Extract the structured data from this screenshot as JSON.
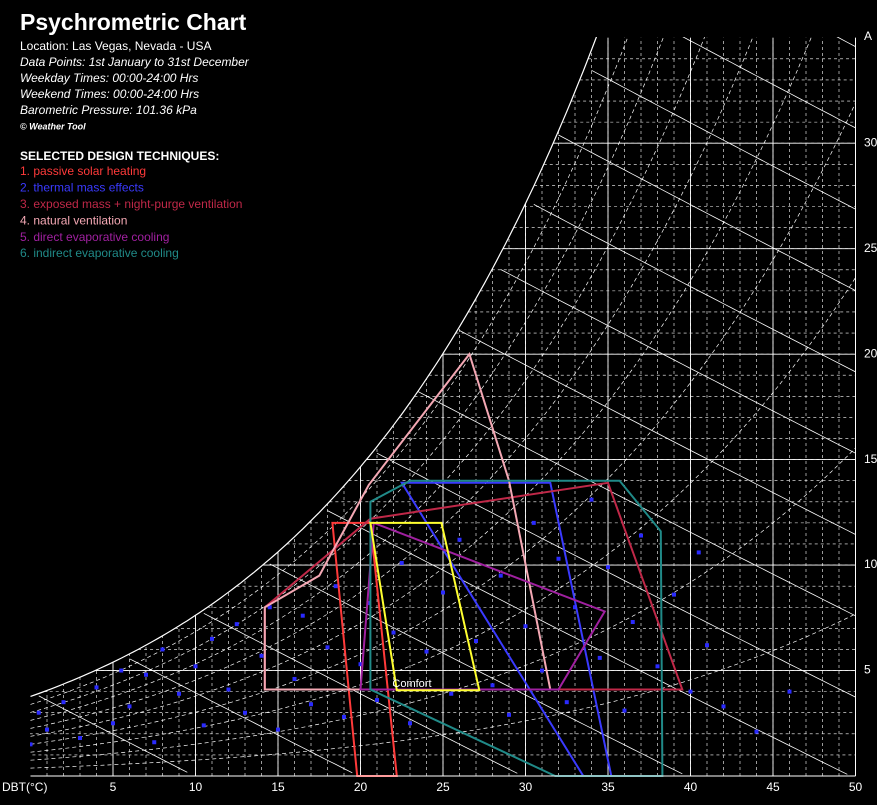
{
  "chart_data": {
    "type": "psychrometric",
    "title": "Psychrometric Chart",
    "info": [
      "Location: Las Vegas, Nevada - USA",
      "Data Points: 1st January to 31st December",
      "Weekday Times: 00:00-24:00 Hrs",
      "Weekend Times: 00:00-24:00 Hrs",
      "Barometric Pressure: 101.36 kPa"
    ],
    "credit": "© Weather Tool",
    "legend_title": "SELECTED DESIGN TECHNIQUES:",
    "xlabel": "DBT(°C)",
    "ylabel": "A",
    "xlim": [
      0,
      50
    ],
    "xticks": [
      5,
      10,
      15,
      20,
      25,
      30,
      35,
      40,
      45,
      50
    ],
    "ylim": [
      0,
      35
    ],
    "yticks": [
      5,
      10,
      15,
      20,
      25,
      30
    ],
    "grid": true,
    "zones": [
      {
        "name": "1. passive solar heating",
        "color": "#ff3a3a",
        "x": [
          18.3,
          20.6,
          22.2,
          19.8
        ],
        "y": [
          12.0,
          12.0,
          0,
          0
        ]
      },
      {
        "name": "2. thermal mass effects",
        "color": "#3a3aff",
        "x": [
          22.5,
          31.5,
          35.2,
          33.5
        ],
        "y": [
          13.9,
          13.9,
          0,
          0
        ]
      },
      {
        "name": "3. exposed mass + night-purge ventilation",
        "color": "#c02848",
        "x": [
          14.2,
          14.2,
          20.6,
          35.0,
          39.5
        ],
        "y": [
          4.1,
          8.0,
          12.2,
          13.9,
          4.1
        ]
      },
      {
        "name": "4. natural ventilation",
        "color": "#f4a8b4",
        "x": [
          14.2,
          14.2,
          17.5,
          20.5,
          26.6,
          29.0,
          31.5
        ],
        "y": [
          4.1,
          8.0,
          9.5,
          13.8,
          20.0,
          14.0,
          4.1
        ]
      },
      {
        "name": "5. direct evaporative cooling",
        "color": "#a020a0",
        "x": [
          20.8,
          34.8,
          32.0,
          20.0
        ],
        "y": [
          12.0,
          7.8,
          4.1,
          4.1
        ]
      },
      {
        "name": "6. indirect evaporative cooling",
        "color": "#208a88",
        "x": [
          20.6,
          23.0,
          35.7,
          38.2,
          38.3,
          31.8,
          20.6
        ],
        "y": [
          13.0,
          14.0,
          14.0,
          11.6,
          0,
          0,
          4.1
        ]
      }
    ],
    "comfort": {
      "label": "Comfort",
      "color": "#ffff30",
      "x": [
        20.6,
        24.9,
        27.2,
        22.2
      ],
      "y": [
        12.0,
        12.0,
        4.07,
        4.07
      ]
    },
    "scatter": {
      "color": "#2a2aff",
      "x": [
        0,
        0.5,
        1,
        2,
        3,
        4,
        5,
        5.5,
        6,
        7,
        7.5,
        8,
        9,
        10,
        10.5,
        11,
        12,
        12.5,
        13,
        14,
        14.5,
        15,
        16,
        16.5,
        17,
        18,
        18.5,
        19,
        20,
        20.5,
        21,
        22,
        22.5,
        23,
        24,
        25,
        25.5,
        26,
        27,
        28,
        28.5,
        29,
        30,
        30.5,
        31,
        32,
        32.5,
        33,
        34,
        34.5,
        35,
        36,
        36.5,
        37,
        38,
        39,
        40,
        40.5,
        41,
        42,
        44,
        46
      ],
      "y": [
        1.5,
        3,
        2.2,
        3.5,
        1.8,
        4.2,
        2.5,
        5.0,
        3.3,
        4.8,
        1.6,
        6.0,
        3.9,
        5.2,
        2.4,
        6.5,
        4.1,
        7.2,
        3.0,
        5.7,
        8.0,
        2.2,
        4.6,
        7.6,
        3.4,
        6.1,
        9.0,
        2.8,
        5.3,
        8.2,
        3.6,
        6.8,
        10.1,
        2.5,
        5.9,
        8.7,
        3.9,
        11.2,
        6.4,
        4.3,
        9.5,
        2.9,
        7.1,
        12.0,
        5.0,
        10.3,
        3.5,
        8.0,
        13.1,
        5.6,
        9.9,
        3.1,
        7.3,
        11.4,
        5.2,
        8.6,
        4.0,
        10.6,
        6.2,
        3.3,
        2.1,
        4.0
      ]
    }
  }
}
